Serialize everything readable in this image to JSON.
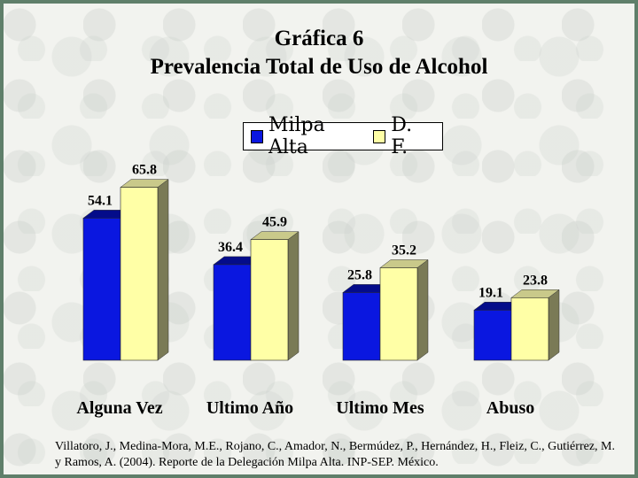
{
  "title_line1": "Gráfica 6",
  "title_line2": "Prevalencia Total de Uso de Alcohol",
  "source_text": "Villatoro, J., Medina-Mora, M.E., Rojano, C., Amador, N., Bermúdez, P., Hernández, H., Fleiz, C., Gutiérrez, M. y Ramos, A. (2004). Reporte de la Delegación Milpa Alta. INP-SEP. México.",
  "colors": {
    "milpa_front": "#0a17e0",
    "milpa_top": "#040c8a",
    "df_front": "#ffffa6",
    "df_top": "#c9c98a",
    "side": "#7a7a56"
  },
  "chart_data": {
    "type": "bar",
    "title": "Prevalencia Total de Uso de Alcohol",
    "categories": [
      "Alguna Vez",
      "Ultimo Año",
      "Ultimo Mes",
      "Abuso"
    ],
    "series": [
      {
        "name": "Milpa Alta",
        "values": [
          54.1,
          36.4,
          25.8,
          19.1
        ],
        "labels": [
          "54.1",
          "36.4",
          "25.8",
          "19.1"
        ]
      },
      {
        "name": "D. F.",
        "values": [
          65.8,
          45.9,
          35.2,
          23.8
        ],
        "labels": [
          "65.8",
          "45.9",
          "35.2",
          "23.8"
        ]
      }
    ],
    "legend": "top-center",
    "grid": false
  }
}
